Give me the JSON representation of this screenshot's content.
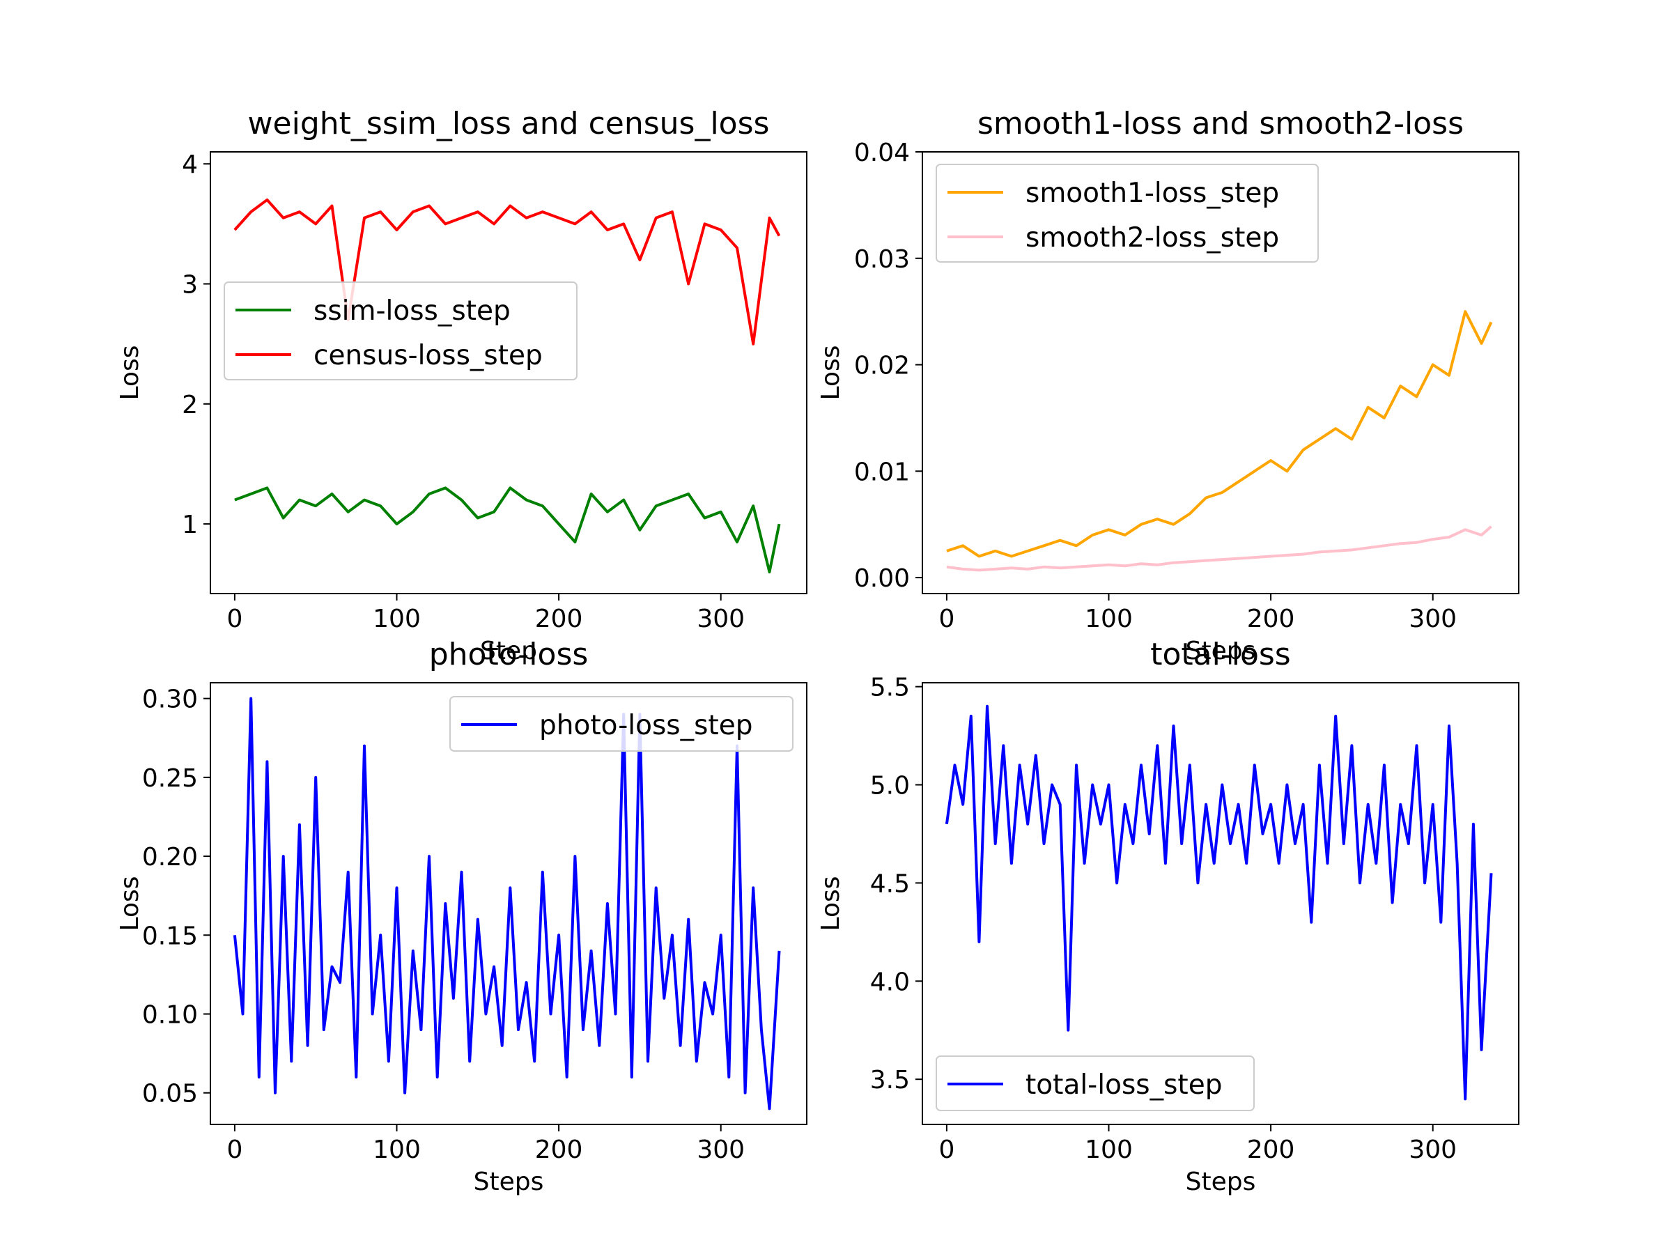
{
  "chart_data": [
    {
      "type": "line",
      "title": "weight_ssim_loss and census_loss",
      "xlabel": "Step",
      "ylabel": "Loss",
      "xlim": [
        -15,
        353
      ],
      "ylim": [
        0.42,
        4.1
      ],
      "xticks": [
        0,
        100,
        200,
        300
      ],
      "xtick_labels": [
        "0",
        "100",
        "200",
        "300"
      ],
      "yticks": [
        1,
        2,
        3,
        4
      ],
      "ytick_labels": [
        "1",
        "2",
        "3",
        "4"
      ],
      "legend": "center-left",
      "series": [
        {
          "name": "ssim-loss_step",
          "color": "#008000",
          "x": [
            0,
            10,
            20,
            30,
            40,
            50,
            60,
            70,
            80,
            90,
            100,
            110,
            120,
            130,
            140,
            150,
            160,
            170,
            180,
            190,
            200,
            210,
            220,
            230,
            240,
            250,
            260,
            270,
            280,
            290,
            300,
            310,
            320,
            330,
            336
          ],
          "y": [
            1.2,
            1.25,
            1.3,
            1.05,
            1.2,
            1.15,
            1.25,
            1.1,
            1.2,
            1.15,
            1.0,
            1.1,
            1.25,
            1.3,
            1.2,
            1.05,
            1.1,
            1.3,
            1.2,
            1.15,
            1.0,
            0.85,
            1.25,
            1.1,
            1.2,
            0.95,
            1.15,
            1.2,
            1.25,
            1.05,
            1.1,
            0.85,
            1.15,
            0.6,
            1.0
          ]
        },
        {
          "name": "census-loss_step",
          "color": "#ff0000",
          "x": [
            0,
            10,
            20,
            30,
            40,
            50,
            60,
            70,
            80,
            90,
            100,
            110,
            120,
            130,
            140,
            150,
            160,
            170,
            180,
            190,
            200,
            210,
            220,
            230,
            240,
            250,
            260,
            270,
            280,
            290,
            300,
            310,
            320,
            330,
            336
          ],
          "y": [
            3.45,
            3.6,
            3.7,
            3.55,
            3.6,
            3.5,
            3.65,
            2.7,
            3.55,
            3.6,
            3.45,
            3.6,
            3.65,
            3.5,
            3.55,
            3.6,
            3.5,
            3.65,
            3.55,
            3.6,
            3.55,
            3.5,
            3.6,
            3.45,
            3.5,
            3.2,
            3.55,
            3.6,
            3.0,
            3.5,
            3.45,
            3.3,
            2.5,
            3.55,
            3.4
          ]
        }
      ]
    },
    {
      "type": "line",
      "title": "smooth1-loss and smooth2-loss",
      "xlabel": "Steps",
      "ylabel": "Loss",
      "xlim": [
        -15,
        353
      ],
      "ylim": [
        -0.0015,
        0.04
      ],
      "xticks": [
        0,
        100,
        200,
        300
      ],
      "xtick_labels": [
        "0",
        "100",
        "200",
        "300"
      ],
      "yticks": [
        0.0,
        0.01,
        0.02,
        0.03,
        0.04
      ],
      "ytick_labels": [
        "0.00",
        "0.01",
        "0.02",
        "0.03",
        "0.04"
      ],
      "legend": "top-left",
      "series": [
        {
          "name": "smooth1-loss_step",
          "color": "#ffa500",
          "x": [
            0,
            10,
            20,
            30,
            40,
            50,
            60,
            70,
            80,
            90,
            100,
            110,
            120,
            130,
            140,
            150,
            160,
            170,
            180,
            190,
            200,
            210,
            220,
            230,
            240,
            250,
            260,
            270,
            280,
            290,
            300,
            310,
            320,
            330,
            336
          ],
          "y": [
            0.0025,
            0.003,
            0.002,
            0.0025,
            0.002,
            0.0025,
            0.003,
            0.0035,
            0.003,
            0.004,
            0.0045,
            0.004,
            0.005,
            0.0055,
            0.005,
            0.006,
            0.0075,
            0.008,
            0.009,
            0.01,
            0.011,
            0.01,
            0.012,
            0.013,
            0.014,
            0.013,
            0.016,
            0.015,
            0.018,
            0.017,
            0.02,
            0.019,
            0.025,
            0.022,
            0.024
          ]
        },
        {
          "name": "smooth2-loss_step",
          "color": "#ffc0cb",
          "x": [
            0,
            10,
            20,
            30,
            40,
            50,
            60,
            70,
            80,
            90,
            100,
            110,
            120,
            130,
            140,
            150,
            160,
            170,
            180,
            190,
            200,
            210,
            220,
            230,
            240,
            250,
            260,
            270,
            280,
            290,
            300,
            310,
            320,
            330,
            336
          ],
          "y": [
            0.001,
            0.0008,
            0.0007,
            0.0008,
            0.0009,
            0.0008,
            0.001,
            0.0009,
            0.001,
            0.0011,
            0.0012,
            0.0011,
            0.0013,
            0.0012,
            0.0014,
            0.0015,
            0.0016,
            0.0017,
            0.0018,
            0.0019,
            0.002,
            0.0021,
            0.0022,
            0.0024,
            0.0025,
            0.0026,
            0.0028,
            0.003,
            0.0032,
            0.0033,
            0.0036,
            0.0038,
            0.0045,
            0.004,
            0.0048
          ]
        }
      ]
    },
    {
      "type": "line",
      "title": "photo-loss",
      "xlabel": "Steps",
      "ylabel": "Loss",
      "xlim": [
        -15,
        353
      ],
      "ylim": [
        0.03,
        0.31
      ],
      "xticks": [
        0,
        100,
        200,
        300
      ],
      "xtick_labels": [
        "0",
        "100",
        "200",
        "300"
      ],
      "yticks": [
        0.05,
        0.1,
        0.15,
        0.2,
        0.25,
        0.3
      ],
      "ytick_labels": [
        "0.05",
        "0.10",
        "0.15",
        "0.20",
        "0.25",
        "0.30"
      ],
      "legend": "top-right",
      "series": [
        {
          "name": "photo-loss_step",
          "color": "#0000ff",
          "x": [
            0,
            5,
            10,
            15,
            20,
            25,
            30,
            35,
            40,
            45,
            50,
            55,
            60,
            65,
            70,
            75,
            80,
            85,
            90,
            95,
            100,
            105,
            110,
            115,
            120,
            125,
            130,
            135,
            140,
            145,
            150,
            155,
            160,
            165,
            170,
            175,
            180,
            185,
            190,
            195,
            200,
            205,
            210,
            215,
            220,
            225,
            230,
            235,
            240,
            245,
            250,
            255,
            260,
            265,
            270,
            275,
            280,
            285,
            290,
            295,
            300,
            305,
            310,
            315,
            320,
            325,
            330,
            336
          ],
          "y": [
            0.15,
            0.1,
            0.3,
            0.06,
            0.26,
            0.05,
            0.2,
            0.07,
            0.22,
            0.08,
            0.25,
            0.09,
            0.13,
            0.12,
            0.19,
            0.06,
            0.27,
            0.1,
            0.15,
            0.07,
            0.18,
            0.05,
            0.14,
            0.09,
            0.2,
            0.06,
            0.17,
            0.11,
            0.19,
            0.07,
            0.16,
            0.1,
            0.13,
            0.08,
            0.18,
            0.09,
            0.12,
            0.07,
            0.19,
            0.1,
            0.15,
            0.06,
            0.2,
            0.09,
            0.14,
            0.08,
            0.17,
            0.1,
            0.29,
            0.06,
            0.29,
            0.07,
            0.18,
            0.11,
            0.15,
            0.08,
            0.16,
            0.07,
            0.12,
            0.1,
            0.15,
            0.06,
            0.27,
            0.05,
            0.18,
            0.09,
            0.04,
            0.14
          ]
        }
      ]
    },
    {
      "type": "line",
      "title": "total-loss",
      "xlabel": "Steps",
      "ylabel": "Loss",
      "xlim": [
        -15,
        353
      ],
      "ylim": [
        3.27,
        5.52
      ],
      "xticks": [
        0,
        100,
        200,
        300
      ],
      "xtick_labels": [
        "0",
        "100",
        "200",
        "300"
      ],
      "yticks": [
        3.5,
        4.0,
        4.5,
        5.0,
        5.5
      ],
      "ytick_labels": [
        "3.5",
        "4.0",
        "4.5",
        "5.0",
        "5.5"
      ],
      "legend": "bottom-left",
      "series": [
        {
          "name": "total-loss_step",
          "color": "#0000ff",
          "x": [
            0,
            5,
            10,
            15,
            20,
            25,
            30,
            35,
            40,
            45,
            50,
            55,
            60,
            65,
            70,
            75,
            80,
            85,
            90,
            95,
            100,
            105,
            110,
            115,
            120,
            125,
            130,
            135,
            140,
            145,
            150,
            155,
            160,
            165,
            170,
            175,
            180,
            185,
            190,
            195,
            200,
            205,
            210,
            215,
            220,
            225,
            230,
            235,
            240,
            245,
            250,
            255,
            260,
            265,
            270,
            275,
            280,
            285,
            290,
            295,
            300,
            305,
            310,
            315,
            320,
            325,
            330,
            336
          ],
          "y": [
            4.8,
            5.1,
            4.9,
            5.35,
            4.2,
            5.4,
            4.7,
            5.2,
            4.6,
            5.1,
            4.8,
            5.15,
            4.7,
            5.0,
            4.9,
            3.75,
            5.1,
            4.6,
            5.0,
            4.8,
            5.0,
            4.5,
            4.9,
            4.7,
            5.1,
            4.75,
            5.2,
            4.6,
            5.3,
            4.7,
            5.1,
            4.5,
            4.9,
            4.6,
            5.0,
            4.7,
            4.9,
            4.6,
            5.1,
            4.75,
            4.9,
            4.6,
            5.0,
            4.7,
            4.9,
            4.3,
            5.1,
            4.6,
            5.35,
            4.7,
            5.2,
            4.5,
            4.9,
            4.6,
            5.1,
            4.4,
            4.9,
            4.7,
            5.2,
            4.5,
            4.9,
            4.3,
            5.3,
            4.6,
            3.4,
            4.8,
            3.65,
            4.55
          ]
        }
      ]
    }
  ]
}
